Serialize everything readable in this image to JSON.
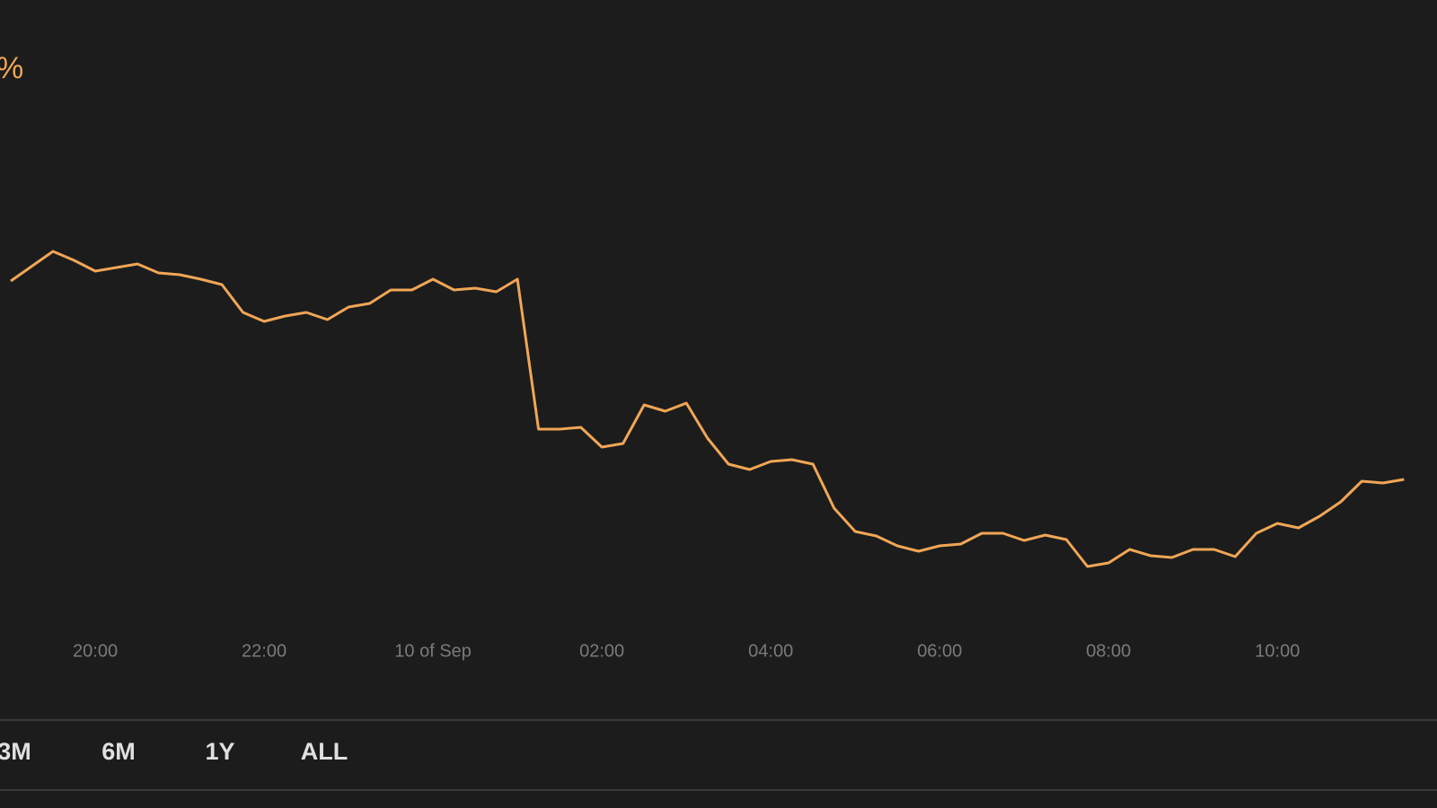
{
  "chart_data": {
    "type": "line",
    "change_label": "%",
    "x": [
      19,
      19.25,
      19.5,
      19.75,
      20,
      20.25,
      20.5,
      20.75,
      21,
      21.25,
      21.5,
      21.75,
      22,
      22.25,
      22.5,
      22.75,
      23,
      23.25,
      23.5,
      23.75,
      24,
      24.25,
      24.5,
      24.75,
      25,
      25.25,
      25.5,
      25.75,
      26,
      26.25,
      26.5,
      26.75,
      27,
      27.25,
      27.5,
      27.75,
      28,
      28.25,
      28.5,
      28.75,
      29,
      29.25,
      29.5,
      29.75,
      30,
      30.25,
      30.5,
      30.75,
      31,
      31.25,
      31.5,
      31.75,
      32,
      32.25,
      32.5,
      32.75,
      33,
      33.25,
      33.5,
      33.75,
      34,
      34.25,
      34.5,
      34.75,
      35,
      35.25,
      35.5
    ],
    "series": [
      {
        "color": "#f0a656",
        "values": [
          77.4,
          80.7,
          84,
          82,
          79.6,
          80.4,
          81.2,
          79.2,
          78.8,
          77.8,
          76.6,
          70.4,
          68.4,
          69.6,
          70.4,
          68.8,
          71.6,
          72.4,
          75.4,
          75.4,
          77.8,
          75.4,
          75.8,
          75,
          77.8,
          44.4,
          44.4,
          44.8,
          40.4,
          41.2,
          49.8,
          48.4,
          50.2,
          42.4,
          36.6,
          35.4,
          37.2,
          37.6,
          36.6,
          26.8,
          21.6,
          20.6,
          18.4,
          17.2,
          18.4,
          18.8,
          21.2,
          21.2,
          19.6,
          20.8,
          19.8,
          13.8,
          14.6,
          17.6,
          16.2,
          15.8,
          17.6,
          17.6,
          16,
          21.2,
          23.4,
          22.4,
          25,
          28.2,
          32.8,
          32.4,
          33.2
        ]
      }
    ],
    "xlim": [
      18.872,
      35.89
    ],
    "ylim": [
      0,
      120
    ],
    "xticks": [
      {
        "value": 20,
        "label": "20:00"
      },
      {
        "value": 22,
        "label": "22:00"
      },
      {
        "value": 24,
        "label": "10 of Sep"
      },
      {
        "value": 26,
        "label": "02:00"
      },
      {
        "value": 28,
        "label": "04:00"
      },
      {
        "value": 30,
        "label": "06:00"
      },
      {
        "value": 32,
        "label": "08:00"
      },
      {
        "value": 34,
        "label": "10:00"
      }
    ]
  },
  "range_buttons": [
    "3M",
    "6M",
    "1Y",
    "ALL"
  ]
}
